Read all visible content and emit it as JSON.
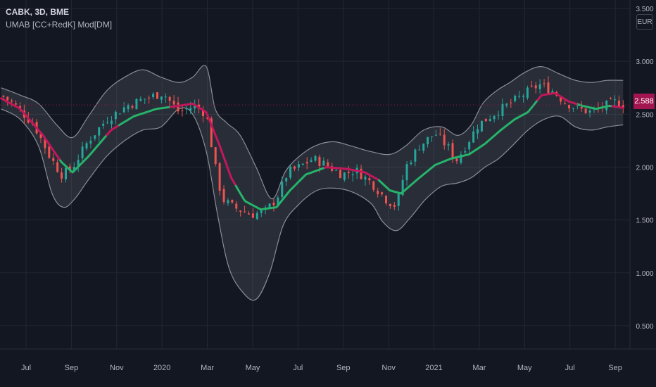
{
  "header": {
    "symbol_line": "CABK, 3D, BME",
    "indicator_line": "UMAB [CC+RedK] Mod[DM]",
    "currency_button": "EUR",
    "last_price": "2.588"
  },
  "colors": {
    "background": "#131722",
    "grid": "#232733",
    "up_candle": "#26a69a",
    "down_candle": "#ef5350",
    "ma_up": "#26b36a",
    "ma_down": "#c2185b",
    "band_line": "#8a8d96",
    "band_fill": "rgba(150,155,165,0.17)",
    "price_tag": "#a2154f",
    "axis_text": "#b2b5be"
  },
  "chart_data": {
    "type": "candlestick",
    "y_axis": {
      "ticks": [
        0.5,
        1.0,
        1.5,
        2.0,
        2.5,
        3.0,
        3.5
      ],
      "tick_labels": [
        "0.500",
        "1.000",
        "1.500",
        "2.000",
        "2.500",
        "3.000",
        "3.500"
      ],
      "range": [
        0.28,
        3.58
      ],
      "position": "right"
    },
    "x_axis": {
      "ticks": [
        {
          "label": "Jul",
          "x": 0.25
        },
        {
          "label": "Sep",
          "x": 2.25
        },
        {
          "label": "Nov",
          "x": 4.25
        },
        {
          "label": "2020",
          "x": 6.25
        },
        {
          "label": "Mar",
          "x": 8.25
        },
        {
          "label": "May",
          "x": 10.25
        },
        {
          "label": "Jul",
          "x": 12.25
        },
        {
          "label": "Sep",
          "x": 14.25
        },
        {
          "label": "Nov",
          "x": 16.25
        },
        {
          "label": "2021",
          "x": 18.25
        },
        {
          "label": "Mar",
          "x": 20.25
        },
        {
          "label": "May",
          "x": 22.25
        },
        {
          "label": "Jul",
          "x": 24.25
        },
        {
          "label": "Sep",
          "x": 26.25
        }
      ],
      "range": [
        -0.9,
        26.9
      ],
      "unit": "months since Jun 2019"
    },
    "last_price": 2.588,
    "price_path": [
      [
        -0.85,
        2.68
      ],
      [
        -0.3,
        2.6
      ],
      [
        0.6,
        2.4
      ],
      [
        1.3,
        2.1
      ],
      [
        1.8,
        1.93
      ],
      [
        2.25,
        1.98
      ],
      [
        3.0,
        2.25
      ],
      [
        3.8,
        2.45
      ],
      [
        4.7,
        2.58
      ],
      [
        5.5,
        2.65
      ],
      [
        6.3,
        2.7
      ],
      [
        7.0,
        2.52
      ],
      [
        7.7,
        2.58
      ],
      [
        8.2,
        2.5
      ],
      [
        8.6,
        2.0
      ],
      [
        8.9,
        1.7
      ],
      [
        9.4,
        1.62
      ],
      [
        10.2,
        1.55
      ],
      [
        10.8,
        1.58
      ],
      [
        11.3,
        1.7
      ],
      [
        11.8,
        1.95
      ],
      [
        12.3,
        2.0
      ],
      [
        12.9,
        2.08
      ],
      [
        13.5,
        2.02
      ],
      [
        14.2,
        1.93
      ],
      [
        14.8,
        1.97
      ],
      [
        15.5,
        1.85
      ],
      [
        16.2,
        1.68
      ],
      [
        16.6,
        1.63
      ],
      [
        17.0,
        2.0
      ],
      [
        17.6,
        2.2
      ],
      [
        18.3,
        2.32
      ],
      [
        18.9,
        2.18
      ],
      [
        19.2,
        2.05
      ],
      [
        19.5,
        2.15
      ],
      [
        20.2,
        2.4
      ],
      [
        21.0,
        2.52
      ],
      [
        21.6,
        2.6
      ],
      [
        22.3,
        2.7
      ],
      [
        22.9,
        2.78
      ],
      [
        23.5,
        2.72
      ],
      [
        24.0,
        2.62
      ],
      [
        24.6,
        2.55
      ],
      [
        25.2,
        2.52
      ],
      [
        25.8,
        2.58
      ],
      [
        26.3,
        2.62
      ],
      [
        26.6,
        2.59
      ]
    ],
    "moving_average": [
      [
        -0.85,
        2.65
      ],
      [
        0.0,
        2.55
      ],
      [
        1.0,
        2.3
      ],
      [
        1.8,
        2.05
      ],
      [
        2.3,
        1.95
      ],
      [
        3.0,
        2.1
      ],
      [
        4.0,
        2.35
      ],
      [
        5.0,
        2.48
      ],
      [
        6.0,
        2.55
      ],
      [
        7.0,
        2.58
      ],
      [
        7.6,
        2.6
      ],
      [
        8.2,
        2.52
      ],
      [
        8.8,
        2.2
      ],
      [
        9.3,
        1.9
      ],
      [
        9.9,
        1.68
      ],
      [
        10.6,
        1.6
      ],
      [
        11.3,
        1.62
      ],
      [
        11.9,
        1.78
      ],
      [
        12.6,
        1.93
      ],
      [
        13.5,
        2.0
      ],
      [
        14.5,
        1.98
      ],
      [
        15.2,
        1.95
      ],
      [
        15.8,
        1.88
      ],
      [
        16.3,
        1.78
      ],
      [
        16.8,
        1.75
      ],
      [
        17.5,
        1.88
      ],
      [
        18.3,
        2.02
      ],
      [
        19.0,
        2.08
      ],
      [
        19.8,
        2.12
      ],
      [
        20.5,
        2.22
      ],
      [
        21.2,
        2.35
      ],
      [
        21.8,
        2.45
      ],
      [
        22.4,
        2.52
      ],
      [
        23.0,
        2.68
      ],
      [
        23.6,
        2.7
      ],
      [
        24.2,
        2.62
      ],
      [
        24.8,
        2.58
      ],
      [
        25.4,
        2.55
      ],
      [
        26.0,
        2.58
      ],
      [
        26.6,
        2.56
      ]
    ],
    "upper_band": [
      [
        -0.85,
        2.75
      ],
      [
        0.0,
        2.68
      ],
      [
        0.8,
        2.6
      ],
      [
        1.6,
        2.4
      ],
      [
        2.3,
        2.28
      ],
      [
        3.0,
        2.48
      ],
      [
        3.8,
        2.72
      ],
      [
        4.6,
        2.85
      ],
      [
        5.4,
        2.92
      ],
      [
        6.2,
        2.85
      ],
      [
        7.0,
        2.8
      ],
      [
        7.6,
        2.85
      ],
      [
        8.2,
        2.95
      ],
      [
        8.6,
        2.55
      ],
      [
        9.1,
        2.42
      ],
      [
        9.7,
        2.3
      ],
      [
        10.4,
        2.0
      ],
      [
        11.1,
        1.7
      ],
      [
        11.7,
        1.96
      ],
      [
        12.3,
        2.1
      ],
      [
        13.0,
        2.2
      ],
      [
        13.8,
        2.24
      ],
      [
        14.6,
        2.2
      ],
      [
        15.4,
        2.15
      ],
      [
        16.3,
        2.12
      ],
      [
        17.0,
        2.2
      ],
      [
        17.8,
        2.35
      ],
      [
        18.6,
        2.38
      ],
      [
        19.3,
        2.3
      ],
      [
        19.9,
        2.4
      ],
      [
        20.4,
        2.6
      ],
      [
        21.0,
        2.72
      ],
      [
        21.6,
        2.8
      ],
      [
        22.3,
        2.9
      ],
      [
        23.0,
        2.95
      ],
      [
        23.8,
        2.88
      ],
      [
        24.5,
        2.82
      ],
      [
        25.2,
        2.8
      ],
      [
        25.9,
        2.82
      ],
      [
        26.6,
        2.82
      ]
    ],
    "lower_band": [
      [
        -0.85,
        2.55
      ],
      [
        0.0,
        2.45
      ],
      [
        0.8,
        2.2
      ],
      [
        1.4,
        1.75
      ],
      [
        1.9,
        1.62
      ],
      [
        2.4,
        1.7
      ],
      [
        3.0,
        1.88
      ],
      [
        3.8,
        2.1
      ],
      [
        4.6,
        2.25
      ],
      [
        5.4,
        2.35
      ],
      [
        6.2,
        2.38
      ],
      [
        7.0,
        2.55
      ],
      [
        7.6,
        2.5
      ],
      [
        8.2,
        2.15
      ],
      [
        8.7,
        1.55
      ],
      [
        9.2,
        1.05
      ],
      [
        9.8,
        0.82
      ],
      [
        10.4,
        0.75
      ],
      [
        11.0,
        1.0
      ],
      [
        11.6,
        1.45
      ],
      [
        12.3,
        1.65
      ],
      [
        13.1,
        1.78
      ],
      [
        13.9,
        1.8
      ],
      [
        14.7,
        1.76
      ],
      [
        15.5,
        1.65
      ],
      [
        16.0,
        1.48
      ],
      [
        16.6,
        1.4
      ],
      [
        17.2,
        1.52
      ],
      [
        17.9,
        1.7
      ],
      [
        18.6,
        1.82
      ],
      [
        19.3,
        1.85
      ],
      [
        19.9,
        1.9
      ],
      [
        20.5,
        2.0
      ],
      [
        21.1,
        2.08
      ],
      [
        21.7,
        2.2
      ],
      [
        22.4,
        2.35
      ],
      [
        23.1,
        2.45
      ],
      [
        23.8,
        2.48
      ],
      [
        24.5,
        2.38
      ],
      [
        25.2,
        2.35
      ],
      [
        25.9,
        2.38
      ],
      [
        26.6,
        2.4
      ]
    ],
    "ma_down_segments": [
      [
        -0.85,
        1.75
      ],
      [
        3.8,
        4.3
      ],
      [
        6.6,
        9.5
      ],
      [
        13.4,
        15.8
      ],
      [
        22.8,
        24.6
      ],
      [
        26.1,
        26.7
      ]
    ],
    "ohlc_sample_count": 150
  }
}
